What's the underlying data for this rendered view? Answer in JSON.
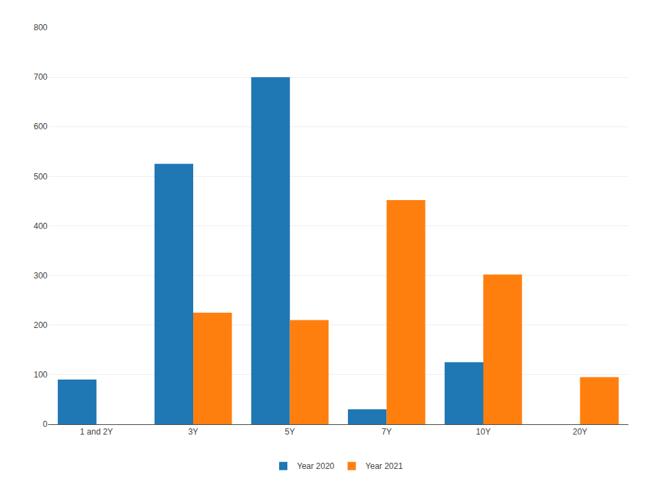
{
  "chart_data": {
    "type": "bar",
    "categories": [
      "1 and 2Y",
      "3Y",
      "5Y",
      "7Y",
      "10Y",
      "20Y"
    ],
    "series": [
      {
        "name": "Year 2020",
        "values": [
          90,
          525,
          700,
          30,
          125,
          0
        ]
      },
      {
        "name": "Year 2021",
        "values": [
          0,
          225,
          210,
          452,
          302,
          95
        ]
      }
    ],
    "ylim": [
      0,
      800
    ],
    "yticks": [
      0,
      100,
      200,
      300,
      400,
      500,
      600,
      700,
      800
    ],
    "grid": true,
    "legend": "bottom"
  }
}
